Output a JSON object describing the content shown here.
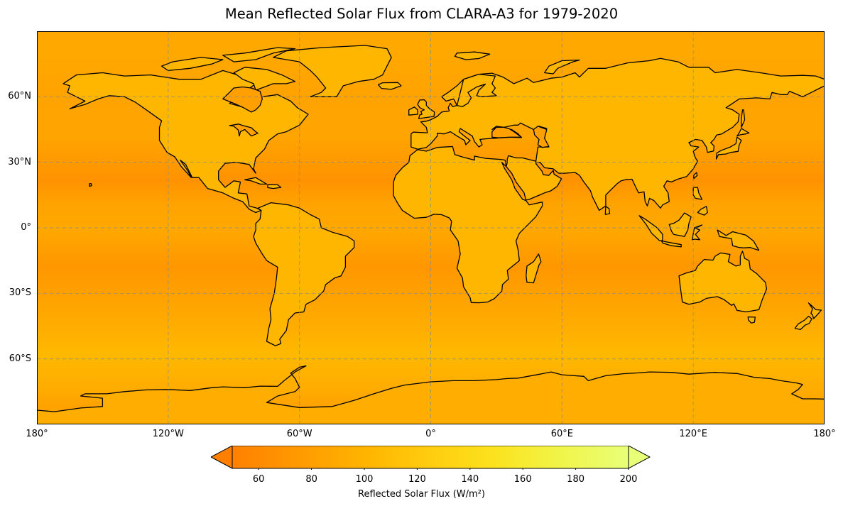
{
  "title": "Mean Reflected Solar Flux from CLARA-A3 for 1979-2020",
  "map": {
    "projection": "PlateCarree",
    "extent_lon": [
      -180,
      180
    ],
    "extent_lat": [
      -90,
      90
    ],
    "lat_labels": [
      "60°N",
      "30°N",
      "0°",
      "30°S",
      "60°S"
    ],
    "lat_values": [
      60,
      30,
      0,
      -30,
      -60
    ],
    "lon_labels": [
      "180°",
      "120°W",
      "60°W",
      "0°",
      "60°E",
      "120°E",
      "180°"
    ],
    "lon_values": [
      -180,
      -120,
      -60,
      0,
      60,
      120,
      180
    ],
    "gridlines": "dashed grey"
  },
  "colorbar": {
    "label": "Reflected Solar Flux (W/m²)",
    "ticks": [
      "60",
      "80",
      "100",
      "120",
      "140",
      "160",
      "180",
      "200"
    ],
    "tick_values": [
      60,
      80,
      100,
      120,
      140,
      160,
      180,
      200
    ],
    "vmin": 50,
    "vmax": 200,
    "extend": "both",
    "colors": [
      "#ff8000",
      "#ff9a00",
      "#ffb400",
      "#ffcd0f",
      "#fbe31f",
      "#f0f54a",
      "#e8ff78"
    ]
  },
  "chart_data": {
    "type": "heatmap",
    "title": "Mean Reflected Solar Flux from CLARA-A3 for 1979-2020",
    "xlabel": "",
    "ylabel": "",
    "x_range": [
      -180,
      180
    ],
    "y_range": [
      -90,
      90
    ],
    "value_range": [
      50,
      200
    ],
    "colorbar_label": "Reflected Solar Flux (W/m²)"
  }
}
